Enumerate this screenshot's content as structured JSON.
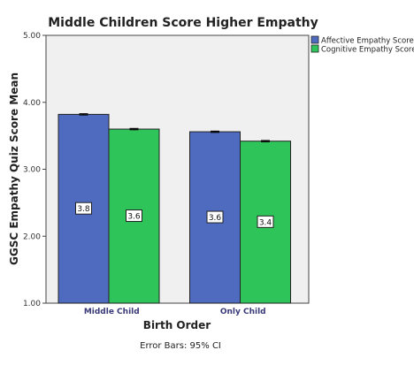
{
  "chart_data": {
    "type": "bar",
    "title": "Middle Children Score Higher Empathy",
    "xlabel": "Birth Order",
    "ylabel": "GGSC Empathy Quiz Score Mean",
    "categories": [
      "Middle Child",
      "Only Child"
    ],
    "series": [
      {
        "name": "Affective Empathy Score",
        "color": "#4f6bbf",
        "values": [
          3.82,
          3.56
        ],
        "labels": [
          "3.8",
          "3.6"
        ],
        "ci": [
          0.01,
          0.01
        ]
      },
      {
        "name": "Cognitive Empathy Score",
        "color": "#2ec45a",
        "values": [
          3.6,
          3.42
        ],
        "labels": [
          "3.6",
          "3.4"
        ],
        "ci": [
          0.01,
          0.01
        ]
      }
    ],
    "ylim": [
      1.0,
      5.0
    ],
    "yticks": [
      "1.00",
      "2.00",
      "3.00",
      "4.00",
      "5.00"
    ],
    "grid": false,
    "legend": "top-right",
    "plot_background": "#f0f0f0",
    "footnote": "Error Bars: 95% CI"
  }
}
